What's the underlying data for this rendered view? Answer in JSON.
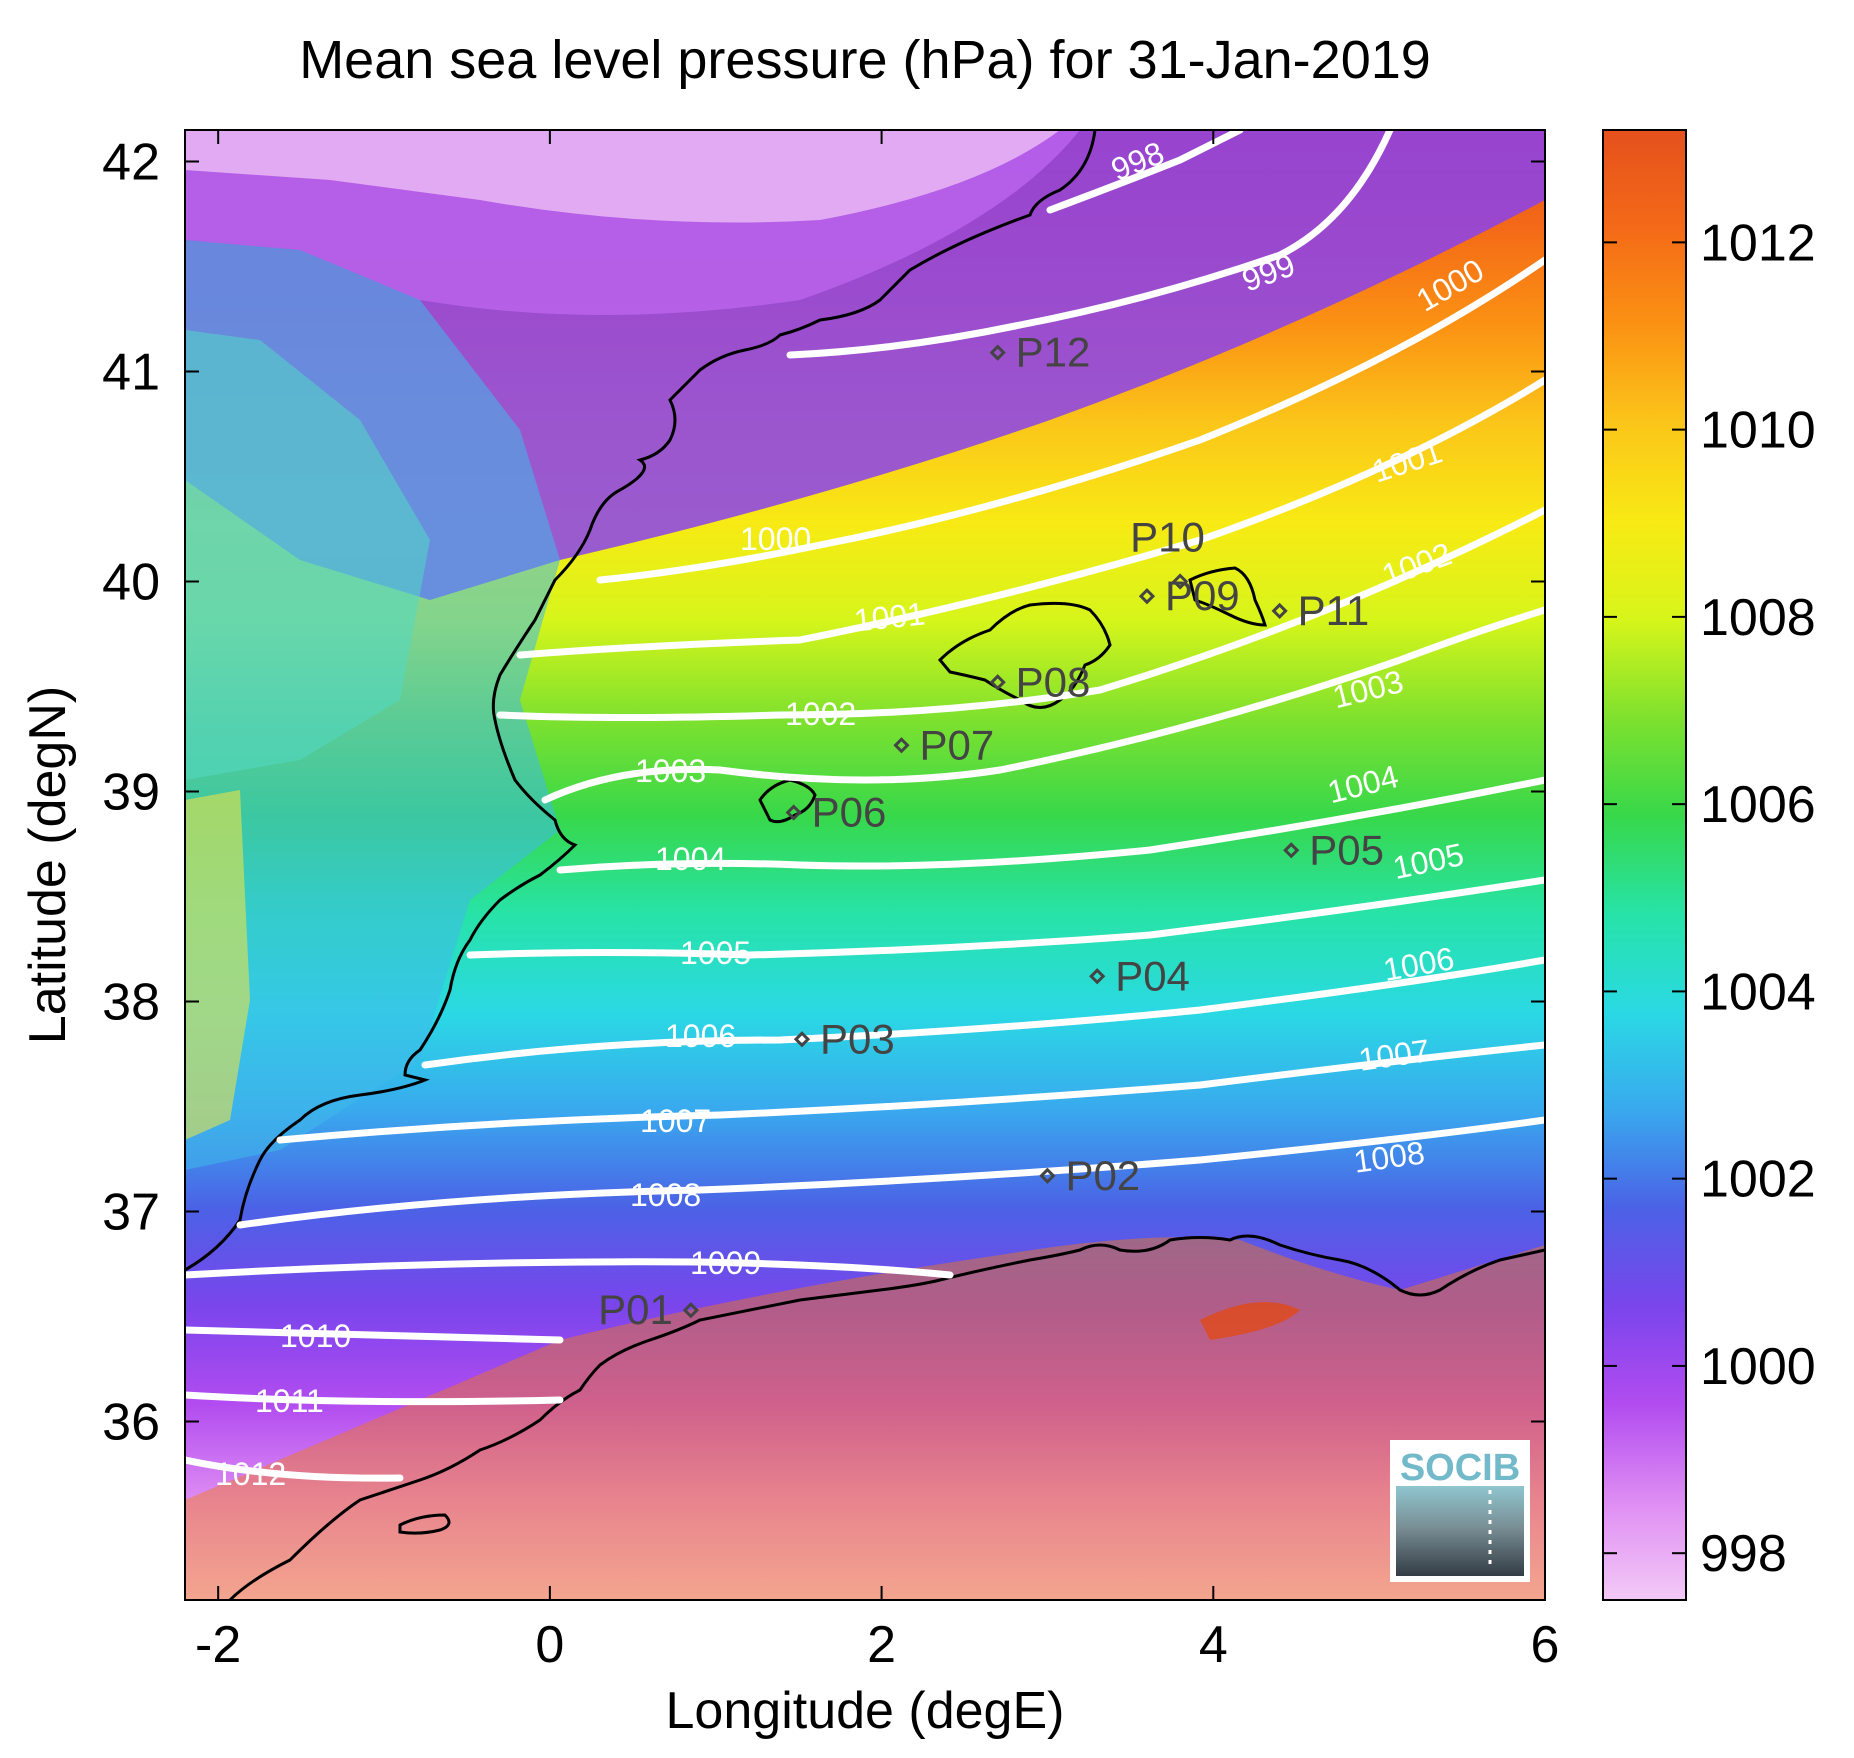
{
  "title": "Mean sea level pressure (hPa) for 31-Jan-2019",
  "xlabel": "Longitude (degE)",
  "ylabel": "Latitude (degN)",
  "x_ticks": [
    "-2",
    "0",
    "2",
    "4",
    "6"
  ],
  "y_ticks": [
    "42",
    "41",
    "40",
    "39",
    "38",
    "37",
    "36"
  ],
  "colorbar": {
    "ticks": [
      "1012",
      "1010",
      "1008",
      "1006",
      "1004",
      "1002",
      "1000",
      "998"
    ],
    "range": [
      997.5,
      1013.2
    ],
    "colors": [
      "#f3c9f6",
      "#de8df3",
      "#b24cf0",
      "#7a45ec",
      "#4b62e6",
      "#39a9ee",
      "#2ad9e4",
      "#27e3a7",
      "#37d84a",
      "#7fe12e",
      "#d7f51a",
      "#f8ea14",
      "#fbc619",
      "#fb9213",
      "#f46a17",
      "#e5501d"
    ]
  },
  "logo_text": "SOCIB",
  "contour_labels": [
    "998",
    "999",
    "1000",
    "1000",
    "1001",
    "1001",
    "1002",
    "1002",
    "1003",
    "1003",
    "1004",
    "1004",
    "1005",
    "1005",
    "1006",
    "1006",
    "1007",
    "1007",
    "1008",
    "1008",
    "1009",
    "1010",
    "1011",
    "1012"
  ],
  "stations": [
    {
      "name": "P01",
      "lon": 0.85,
      "lat": 36.53
    },
    {
      "name": "P02",
      "lon": 3.0,
      "lat": 37.17
    },
    {
      "name": "P03",
      "lon": 1.52,
      "lat": 37.82
    },
    {
      "name": "P04",
      "lon": 3.3,
      "lat": 38.12
    },
    {
      "name": "P05",
      "lon": 4.47,
      "lat": 38.72
    },
    {
      "name": "P06",
      "lon": 1.47,
      "lat": 38.9
    },
    {
      "name": "P07",
      "lon": 2.12,
      "lat": 39.22
    },
    {
      "name": "P08",
      "lon": 2.7,
      "lat": 39.52
    },
    {
      "name": "P09",
      "lon": 3.6,
      "lat": 39.93
    },
    {
      "name": "P10",
      "lon": 3.8,
      "lat": 40.0
    },
    {
      "name": "P11",
      "lon": 4.4,
      "lat": 39.86
    },
    {
      "name": "P12",
      "lon": 2.7,
      "lat": 41.09
    }
  ]
}
